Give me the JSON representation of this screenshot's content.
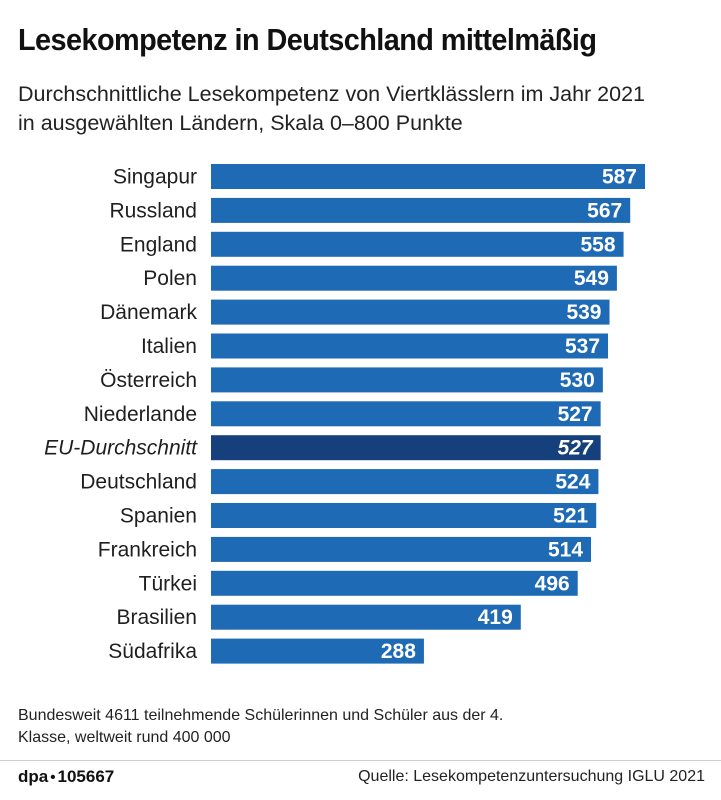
{
  "header": {
    "title": "Lesekompetenz in Deutschland mittelmäßig",
    "subtitle": "Durchschnittliche Lesekompetenz von Viertklässlern im Jahr 2021 in ausgewählten Ländern, Skala 0–800 Punkte"
  },
  "chart_data": {
    "type": "bar",
    "orientation": "horizontal",
    "title": "Lesekompetenz in Deutschland mittelmäßig",
    "subtitle": "Durchschnittliche Lesekompetenz von Viertklässlern im Jahr 2021 in ausgewählten Ländern, Skala 0–800 Punkte",
    "xlabel": "",
    "ylabel": "",
    "xlim": [
      0,
      587
    ],
    "grid": false,
    "categories": [
      "Singapur",
      "Russland",
      "England",
      "Polen",
      "Dänemark",
      "Italien",
      "Österreich",
      "Niederlande",
      "EU-Durchschnitt",
      "Deutschland",
      "Spanien",
      "Frankreich",
      "Türkei",
      "Brasilien",
      "Südafrika"
    ],
    "values": [
      587,
      567,
      558,
      549,
      539,
      537,
      530,
      527,
      527,
      524,
      521,
      514,
      496,
      419,
      288
    ],
    "highlight": "EU-Durchschnitt",
    "colors": {
      "bar": "#1f6ab5",
      "highlight": "#16407c",
      "label": "#ffffff"
    }
  },
  "footnote": "Bundesweit 4611 teilnehmende Schülerinnen und Schüler aus der 4. Klasse, weltweit rund 400 000",
  "footer": {
    "brand": "dpa",
    "brand_sep": "•",
    "graphic_id": "105667",
    "source": "Quelle: Lesekompetenzuntersuchung IGLU 2021"
  }
}
